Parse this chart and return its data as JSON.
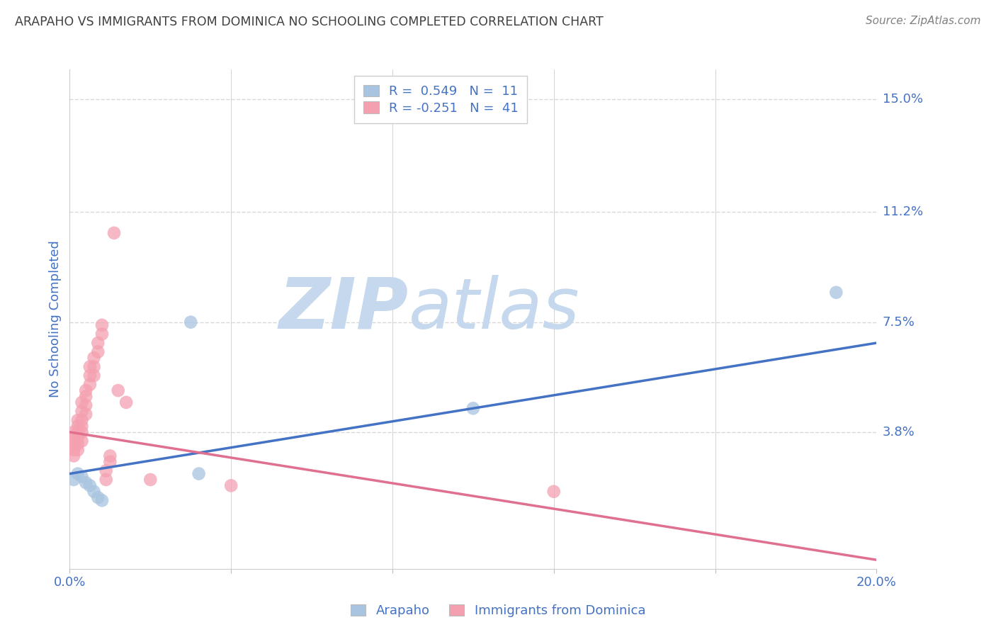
{
  "title": "ARAPAHO VS IMMIGRANTS FROM DOMINICA NO SCHOOLING COMPLETED CORRELATION CHART",
  "source": "Source: ZipAtlas.com",
  "xlabel_blue": "Arapaho",
  "xlabel_pink": "Immigrants from Dominica",
  "ylabel": "No Schooling Completed",
  "xlim": [
    0.0,
    0.2
  ],
  "ylim": [
    -0.008,
    0.16
  ],
  "xticks": [
    0.0,
    0.04,
    0.08,
    0.12,
    0.16,
    0.2
  ],
  "ytick_labels_right": [
    "15.0%",
    "11.2%",
    "7.5%",
    "3.8%"
  ],
  "ytick_vals_right": [
    0.15,
    0.112,
    0.075,
    0.038
  ],
  "blue_color": "#a8c4e0",
  "pink_color": "#f4a0b0",
  "blue_line_color": "#4472c4",
  "pink_line_color": "#e07090",
  "title_color": "#404040",
  "source_color": "#808080",
  "axis_label_color": "#4472c4",
  "blue_points_x": [
    0.001,
    0.002,
    0.003,
    0.004,
    0.005,
    0.006,
    0.007,
    0.008,
    0.03,
    0.032,
    0.1,
    0.19
  ],
  "blue_points_y": [
    0.022,
    0.024,
    0.023,
    0.021,
    0.02,
    0.018,
    0.016,
    0.015,
    0.075,
    0.024,
    0.046,
    0.085
  ],
  "pink_points_x": [
    0.001,
    0.001,
    0.001,
    0.001,
    0.001,
    0.002,
    0.002,
    0.002,
    0.002,
    0.002,
    0.002,
    0.003,
    0.003,
    0.003,
    0.003,
    0.003,
    0.003,
    0.004,
    0.004,
    0.004,
    0.004,
    0.005,
    0.005,
    0.005,
    0.006,
    0.006,
    0.006,
    0.007,
    0.007,
    0.008,
    0.008,
    0.009,
    0.009,
    0.01,
    0.01,
    0.011,
    0.012,
    0.014,
    0.02,
    0.04,
    0.12
  ],
  "pink_points_y": [
    0.038,
    0.036,
    0.034,
    0.032,
    0.03,
    0.042,
    0.04,
    0.038,
    0.036,
    0.034,
    0.032,
    0.048,
    0.045,
    0.042,
    0.04,
    0.038,
    0.035,
    0.052,
    0.05,
    0.047,
    0.044,
    0.06,
    0.057,
    0.054,
    0.063,
    0.06,
    0.057,
    0.068,
    0.065,
    0.074,
    0.071,
    0.025,
    0.022,
    0.03,
    0.028,
    0.105,
    0.052,
    0.048,
    0.022,
    0.02,
    0.018
  ],
  "blue_line_x": [
    0.0,
    0.2
  ],
  "blue_line_y": [
    0.024,
    0.068
  ],
  "pink_line_x": [
    0.0,
    0.2
  ],
  "pink_line_y": [
    0.038,
    -0.005
  ],
  "watermark_zip": "ZIP",
  "watermark_atlas": "atlas",
  "watermark_color": "#dde8f4",
  "grid_color": "#d8d8d8",
  "grid_dash": [
    4,
    4
  ]
}
